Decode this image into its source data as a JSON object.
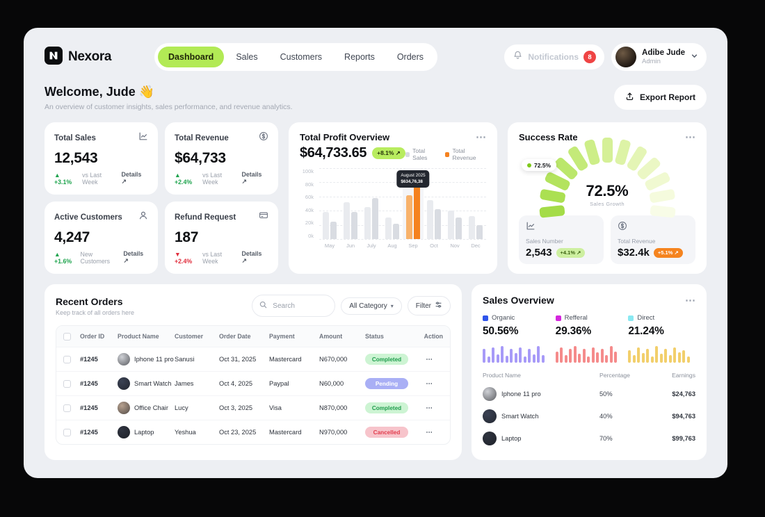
{
  "brand": {
    "name": "Nexora"
  },
  "nav": {
    "items": [
      {
        "label": "Dashboard",
        "active": true
      },
      {
        "label": "Sales",
        "active": false
      },
      {
        "label": "Customers",
        "active": false
      },
      {
        "label": "Reports",
        "active": false
      },
      {
        "label": "Orders",
        "active": false
      }
    ]
  },
  "topbar": {
    "notifications_label": "Notifications",
    "notifications_count": "8",
    "user": {
      "name": "Adibe Jude",
      "role": "Admin"
    }
  },
  "welcome": {
    "title": "Welcome, Jude 👋",
    "subtitle": "An overview of customer insights, sales performance, and revenue analytics.",
    "export_label": "Export Report"
  },
  "stats": [
    {
      "title": "Total Sales",
      "icon": "chart-trend-icon",
      "value": "12,543",
      "delta": "+3.1%",
      "note": "vs Last Week",
      "trend": "up",
      "details": "Details ↗"
    },
    {
      "title": "Total Revenue",
      "icon": "dollar-circle-icon",
      "value": "$64,733",
      "delta": "+2.4%",
      "note": "vs Last Week",
      "trend": "up",
      "details": "Details ↗"
    },
    {
      "title": "Active Customers",
      "icon": "customers-icon",
      "value": "4,247",
      "delta": "+1.6%",
      "note": "New Customers",
      "trend": "up",
      "details": "Details ↗"
    },
    {
      "title": "Refund Request",
      "icon": "refund-icon",
      "value": "187",
      "delta": "+2.4%",
      "note": "vs Last Week",
      "trend": "down",
      "details": "Details ↗"
    }
  ],
  "profit": {
    "title": "Total Profit Overview",
    "value": "$64,733.65",
    "badge": "+8.1% ↗",
    "menu": "⋯",
    "legend": [
      {
        "label": "Total Sales",
        "color": "#d7dae0"
      },
      {
        "label": "Total Revenue",
        "color": "#f5821f"
      }
    ],
    "tooltip": {
      "line1": "August 2025",
      "line2": "$634,76,38"
    }
  },
  "success": {
    "title": "Success Rate",
    "menu": "⋯",
    "gauge_badge": "72.5%",
    "gauge_value": "72.5%",
    "gauge_label": "Sales Growth",
    "gauge_colors": [
      "#a4dc48",
      "#abe052",
      "#b3e35e",
      "#bbe76b",
      "#c4ea79",
      "#cdee88",
      "#d5f097",
      "#ddf3a6",
      "#e4f5b5",
      "#ebf7c4",
      "#f0f9d1",
      "#f5fbdd",
      "#f8fce7"
    ],
    "metrics": [
      {
        "icon": "chart-trend-icon",
        "label": "Sales Number",
        "value": "2,543",
        "badge": "+4.1% ↗",
        "badge_style": "green"
      },
      {
        "icon": "dollar-circle-icon",
        "label": "Total Revenue",
        "value": "$32.4k",
        "badge": "+5.1% ↗",
        "badge_style": "orange"
      }
    ]
  },
  "orders": {
    "title": "Recent Orders",
    "subtitle": "Keep track of all orders here",
    "search_placeholder": "Search",
    "category_label": "All Category",
    "filter_label": "Filter",
    "action_glyph": "⋯",
    "columns": [
      "Order ID",
      "Product Name",
      "Customer",
      "Order Date",
      "Payment",
      "Amount",
      "Status",
      "Action"
    ],
    "rows": [
      {
        "id": "#1245",
        "product": "Iphone 11 pro",
        "avatar": "#cfd1d6",
        "customer": "Sanusi",
        "date": "Oct 31, 2025",
        "payment": "Mastercard",
        "amount": "N670,000",
        "status": "Completed"
      },
      {
        "id": "#1245",
        "product": "Smart Watch",
        "avatar": "#3b4254",
        "customer": "James",
        "date": "Oct 4, 2025",
        "payment": "Paypal",
        "amount": "N60,000",
        "status": "Pending"
      },
      {
        "id": "#1245",
        "product": "Office Chair",
        "avatar": "#b7a18f",
        "customer": "Lucy",
        "date": "Oct 3, 2025",
        "payment": "Visa",
        "amount": "N870,000",
        "status": "Completed"
      },
      {
        "id": "#1245",
        "product": "Laptop",
        "avatar": "#2f3440",
        "customer": "Yeshua",
        "date": "Oct 23, 2025",
        "payment": "Mastercard",
        "amount": "N970,000",
        "status": "Cancelled"
      }
    ]
  },
  "sales_overview": {
    "title": "Sales Overview",
    "menu": "⋯",
    "segments": [
      {
        "label": "Organic",
        "value": "50.56%",
        "swatch": "#2f54eb",
        "bar_color": "#a79af8",
        "spark": [
          20,
          9,
          22,
          12,
          24,
          10,
          20,
          14,
          22,
          9,
          20,
          12,
          24,
          11
        ]
      },
      {
        "label": "Refferal",
        "value": "29.36%",
        "swatch": "#d426dd",
        "bar_color": "#f58b8b",
        "spark": [
          16,
          22,
          11,
          20,
          24,
          13,
          20,
          9,
          22,
          15,
          20,
          11,
          24,
          16
        ]
      },
      {
        "label": "Direct",
        "value": "21.24%",
        "swatch": "#8ae9f2",
        "bar_color": "#f2cf6b",
        "spark": [
          18,
          11,
          22,
          14,
          20,
          9,
          24,
          13,
          20,
          11,
          22,
          15,
          18,
          9
        ]
      }
    ],
    "table": {
      "columns": [
        "Product Name",
        "Percentage",
        "Earnings"
      ],
      "rows": [
        {
          "product": "Iphone 11 pro",
          "avatar": "#cfd1d6",
          "percentage": "50%",
          "earnings": "$24,763"
        },
        {
          "product": "Smart Watch",
          "avatar": "#3b4254",
          "percentage": "40%",
          "earnings": "$94,763"
        },
        {
          "product": "Laptop",
          "avatar": "#2f3440",
          "percentage": "70%",
          "earnings": "$99,763"
        }
      ]
    }
  },
  "chart_data": [
    {
      "type": "bar",
      "title": "Total Profit Overview",
      "categories": [
        "May",
        "Jun",
        "July",
        "Aug",
        "Sep",
        "Oct",
        "Nov",
        "Dec"
      ],
      "series": [
        {
          "name": "Total Sales",
          "values": [
            38,
            52,
            45,
            30,
            62,
            55,
            40,
            32
          ]
        },
        {
          "name": "Total Revenue",
          "values": [
            25,
            38,
            58,
            22,
            84,
            42,
            30,
            20
          ]
        }
      ],
      "ticks": [
        "0k",
        "20k",
        "40k",
        "60k",
        "80k",
        "100k"
      ],
      "ylim": [
        0,
        100
      ],
      "highlight_index": 4,
      "legend_position": "top-right",
      "grid": true
    },
    {
      "type": "gauge",
      "title": "Success Rate",
      "value": 72.5,
      "max": 100,
      "label": "Sales Growth",
      "segments": 13
    }
  ]
}
